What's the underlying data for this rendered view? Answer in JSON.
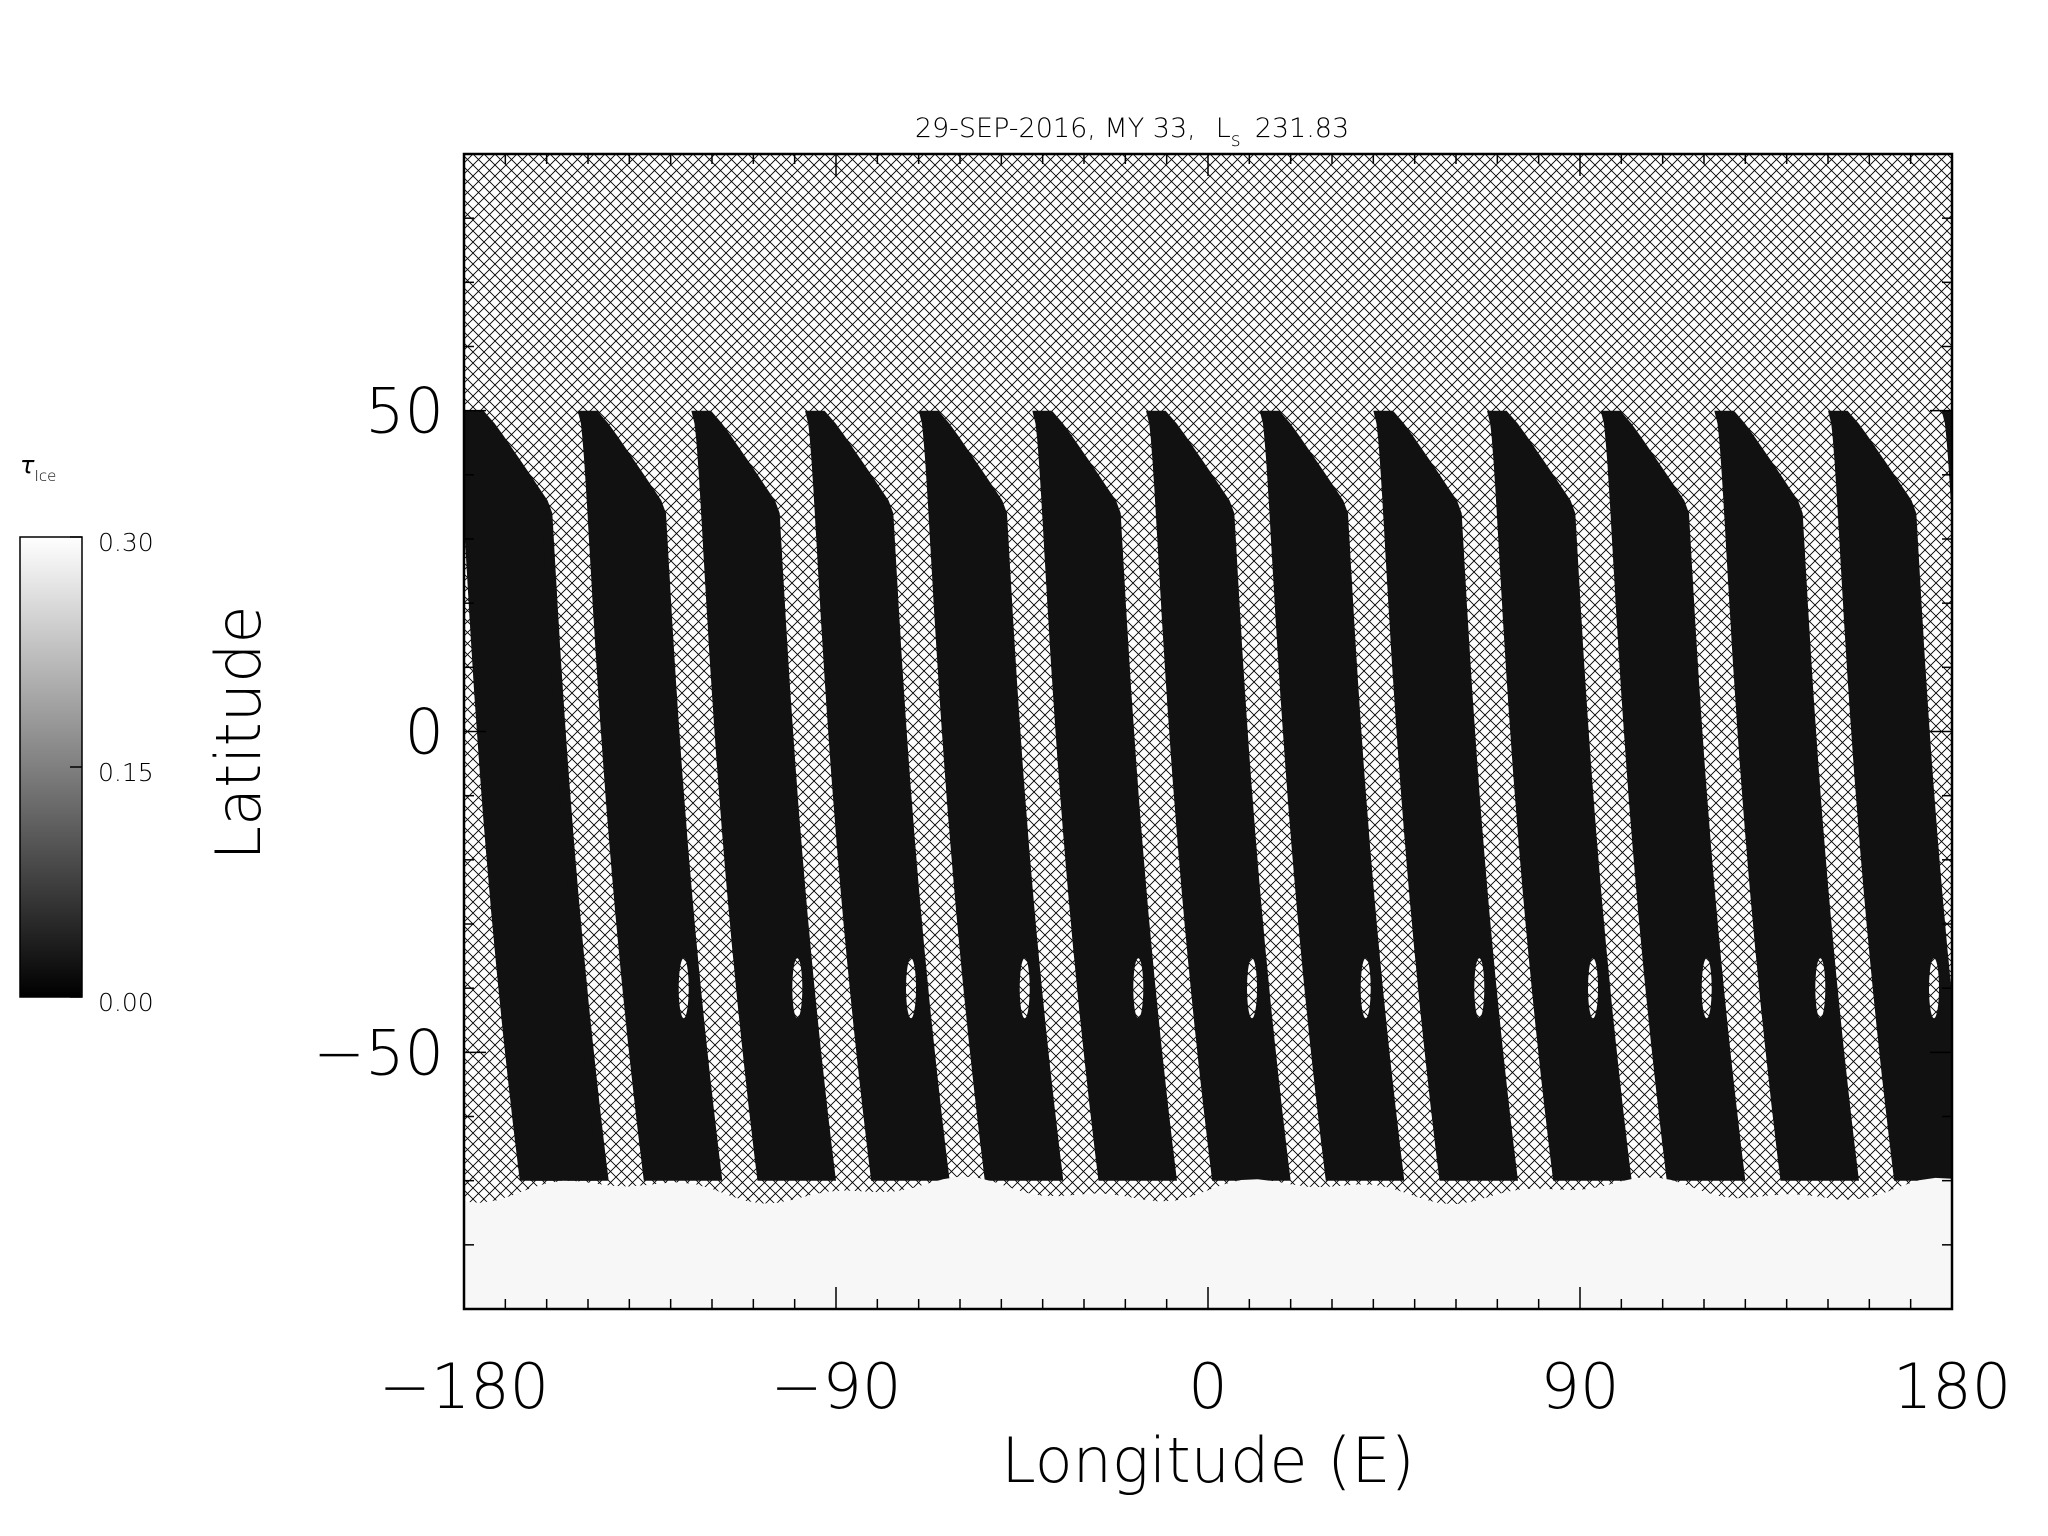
{
  "chart_data": {
    "type": "heatmap",
    "title": "29-SEP-2016, MY 33,",
    "ls_symbol": "L",
    "ls_subscript": "s",
    "ls_value": "231.83",
    "xlabel": "Longitude (E)",
    "ylabel": "Latitude",
    "xlim": [
      -180,
      180
    ],
    "ylim": [
      -90,
      90
    ],
    "x_ticks": [
      -180,
      -90,
      0,
      90,
      180
    ],
    "x_tick_labels": [
      "−180",
      "−90",
      "0",
      "90",
      "180"
    ],
    "y_ticks": [
      -50,
      0,
      50
    ],
    "y_tick_labels": [
      "−50",
      "0",
      "50"
    ],
    "grid": false,
    "no_data_fill": "cross-hatch",
    "colorbar": {
      "label_symbol": "τ",
      "label_subscript": "Ice",
      "range": [
        0.0,
        0.3
      ],
      "ticks": [
        "0.00",
        "0.15",
        "0.30"
      ],
      "colors": [
        "#000000",
        "#ffffff"
      ],
      "placement": "left"
    },
    "swath": {
      "count": 14,
      "first_north_edge_longitude": -180,
      "spacing_deg": 27.5,
      "north_edge_latitude": 50,
      "south_edge_latitude": -70,
      "width_deg": 19,
      "typical_tau_ice": 0.02
    },
    "polar_hood": {
      "latitude_from": -90,
      "latitude_to": -70,
      "tau_ice": 0.29
    }
  }
}
